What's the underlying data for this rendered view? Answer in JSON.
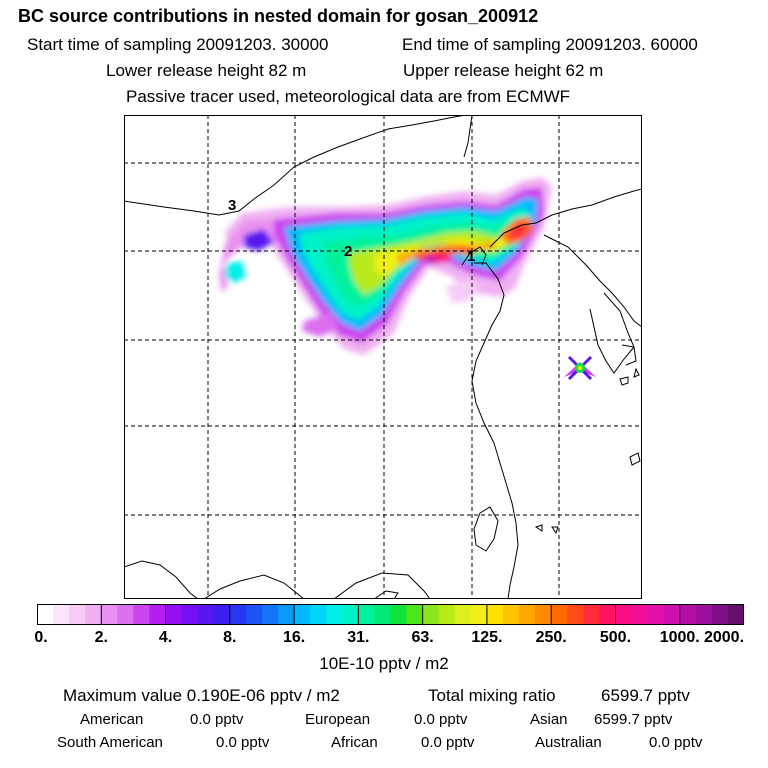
{
  "header": {
    "title": "BC  source contributions in nested domain for gosan_200912",
    "start_label": "Start time of sampling 20091203. 30000",
    "end_label": "End time of sampling 20091203. 60000",
    "lower_label": "Lower release height   82 m",
    "upper_label": "Upper release height   62 m",
    "tracer_note": "Passive tracer used, meteorological data are from ECMWF"
  },
  "map": {
    "region_labels": [
      "3",
      "2",
      "1"
    ],
    "receptor_marker": "x-marker-icon",
    "gridline_color": "#000000"
  },
  "colorbar": {
    "tick_labels": [
      "0.",
      "2.",
      "4.",
      "8.",
      "16.",
      "31.",
      "63.",
      "125.",
      "250.",
      "500.",
      "1000.",
      "2000."
    ],
    "units": "10E-10 pptv / m2",
    "colors": [
      "#ffffff",
      "#fbe6fb",
      "#f6ccf7",
      "#f0b0f2",
      "#e990f0",
      "#dc6ef0",
      "#cb44ef",
      "#b51ef0",
      "#9510f2",
      "#7610f2",
      "#5a16f0",
      "#3e1ef0",
      "#2a36f4",
      "#1e54f6",
      "#1474f8",
      "#0a98fa",
      "#00b8fc",
      "#00d6fc",
      "#00eeea",
      "#00f2c8",
      "#00f09c",
      "#00e872",
      "#10e43a",
      "#50e41a",
      "#88e61a",
      "#b8ea1a",
      "#dcf01c",
      "#f0f018",
      "#ffe000",
      "#ffc400",
      "#ffa800",
      "#ff8a00",
      "#ff6a00",
      "#ff4a1a",
      "#ff2a3a",
      "#ff1460",
      "#fa1084",
      "#f01098",
      "#e010a8",
      "#cc10b0",
      "#b410a8",
      "#9a109c",
      "#801088",
      "#621068"
    ]
  },
  "summary": {
    "max_label": "Maximum value  0.190E-06 pptv / m2",
    "total_label": "Total mixing ratio",
    "total_value": "6599.7 pptv",
    "regions": [
      {
        "name": "American",
        "value": "0.0 pptv"
      },
      {
        "name": "European",
        "value": "0.0 pptv"
      },
      {
        "name": "Asian",
        "value": "6599.7 pptv"
      },
      {
        "name": "South American",
        "value": "0.0 pptv"
      },
      {
        "name": "African",
        "value": "0.0 pptv"
      },
      {
        "name": "Australian",
        "value": "0.0 pptv"
      }
    ]
  }
}
